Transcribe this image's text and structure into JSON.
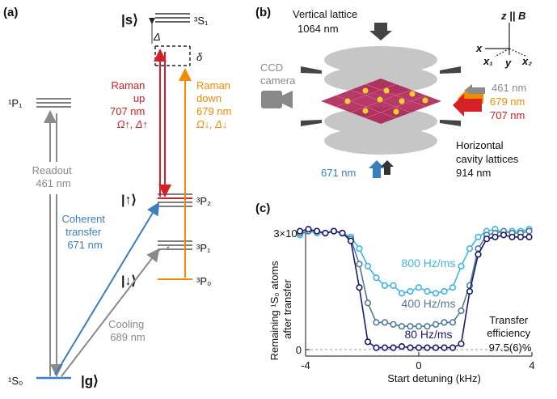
{
  "panels": {
    "a": "(a)",
    "b": "(b)",
    "c": "(c)"
  },
  "panel_a": {
    "state_s": "|s⟩",
    "level_3S1": "³S₁",
    "level_1P1": "¹P₁",
    "level_3P2": "³P₂",
    "level_3P1": "³P₁",
    "level_3P0": "³P₀",
    "level_1S0": "¹S₀",
    "state_up": "|↑⟩",
    "state_down": "|↓⟩",
    "state_g": "|g⟩",
    "delta_cap": "Δ",
    "delta_small": "δ",
    "raman_up": [
      "Raman",
      "up",
      "707 nm",
      "Ω↑, Δ↑"
    ],
    "raman_down": [
      "Raman",
      "down",
      "679 nm",
      "Ω↓, Δ↓"
    ],
    "readout": [
      "Readout",
      "461 nm"
    ],
    "coherent": [
      "Coherent",
      "transfer",
      "671 nm"
    ],
    "cooling": [
      "Cooling",
      "689 nm"
    ],
    "colors": {
      "red": "#d42027",
      "orange": "#f08a00",
      "blue": "#3a7ebf",
      "gray": "#8a8a8a"
    }
  },
  "panel_b": {
    "vertical_lattice": [
      "Vertical lattice",
      "1064 nm"
    ],
    "ccd": [
      "CCD",
      "camera"
    ],
    "beam_461": "461 nm",
    "beam_679": "679 nm",
    "beam_707": "707 nm",
    "beam_671": "671 nm",
    "horizontal": [
      "Horizontal",
      "cavity lattices",
      "914 nm"
    ],
    "axes": {
      "z": "z || B",
      "x": "x",
      "x1": "x₁",
      "y": "y",
      "x2": "x₂"
    }
  },
  "chart_data": {
    "type": "line",
    "xlabel": "Start detuning (kHz)",
    "ylabel": [
      "Remaining ¹S₀ atoms",
      "after transfer"
    ],
    "xlim": [
      -4,
      4
    ],
    "ylim": [
      0,
      300000
    ],
    "xticks": [
      "-4",
      "0",
      "4"
    ],
    "yticks": [
      "0",
      "3×10⁵"
    ],
    "annotation": [
      "Transfer",
      "efficiency",
      "97.5(6)%"
    ],
    "series": [
      {
        "name": "800 Hz/ms",
        "color": "#3fb4e6",
        "x": [
          -4.2,
          -3.9,
          -3.6,
          -3.3,
          -3.0,
          -2.7,
          -2.4,
          -2.1,
          -1.8,
          -1.5,
          -1.2,
          -0.9,
          -0.6,
          -0.3,
          0.0,
          0.3,
          0.6,
          0.9,
          1.2,
          1.5,
          1.8,
          2.1,
          2.4,
          2.7,
          3.0,
          3.3,
          3.6,
          3.9
        ],
        "values": [
          295000,
          305000,
          300000,
          300000,
          305000,
          300000,
          290000,
          260000,
          215000,
          185000,
          165000,
          165000,
          145000,
          150000,
          160000,
          150000,
          145000,
          150000,
          160000,
          215000,
          260000,
          290000,
          305000,
          310000,
          300000,
          305000,
          305000,
          310000
        ]
      },
      {
        "name": "400 Hz/ms",
        "color": "#4f7d96",
        "x": [
          -4.2,
          -3.9,
          -3.6,
          -3.3,
          -3.0,
          -2.7,
          -2.4,
          -2.1,
          -1.8,
          -1.5,
          -1.2,
          -0.9,
          -0.6,
          -0.3,
          0.0,
          0.3,
          0.6,
          0.9,
          1.2,
          1.5,
          1.8,
          2.1,
          2.4,
          2.7,
          3.0,
          3.3,
          3.6,
          3.9
        ],
        "values": [
          300000,
          305000,
          305000,
          300000,
          305000,
          300000,
          285000,
          220000,
          120000,
          70000,
          70000,
          65000,
          60000,
          60000,
          60000,
          60000,
          65000,
          70000,
          70000,
          100000,
          165000,
          260000,
          295000,
          300000,
          305000,
          300000,
          300000,
          305000
        ]
      },
      {
        "name": "80 Hz/ms",
        "color": "#1a1a6e",
        "x": [
          -4.2,
          -3.9,
          -3.6,
          -3.3,
          -3.0,
          -2.7,
          -2.4,
          -2.1,
          -1.8,
          -1.5,
          -1.2,
          -0.9,
          -0.6,
          -0.3,
          0.0,
          0.3,
          0.6,
          0.9,
          1.2,
          1.5,
          1.8,
          2.1,
          2.4,
          2.7,
          3.0,
          3.3,
          3.6,
          3.9
        ],
        "values": [
          305000,
          310000,
          305000,
          300000,
          305000,
          300000,
          280000,
          160000,
          20000,
          5000,
          5000,
          5000,
          8000,
          5000,
          5000,
          5000,
          5000,
          5000,
          5000,
          15000,
          150000,
          245000,
          285000,
          290000,
          295000,
          290000,
          290000,
          290000
        ]
      }
    ]
  }
}
